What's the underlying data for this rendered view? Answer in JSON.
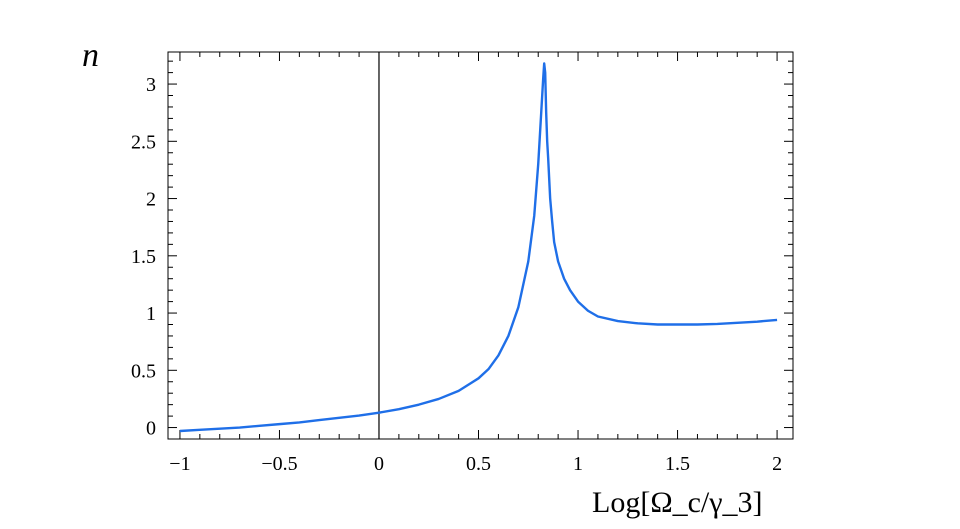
{
  "chart_data": {
    "type": "line",
    "title": "",
    "xlabel": "Log[Ω_c/γ_3]",
    "ylabel": "n",
    "xlim": [
      -1.06,
      2.08
    ],
    "ylim": [
      -0.1,
      3.28
    ],
    "x_ticks": [
      -1,
      -0.5,
      0,
      0.5,
      1,
      1.5,
      2
    ],
    "x_tick_labels": [
      "−1",
      "−0.5",
      "0",
      "0.5",
      "1",
      "1.5",
      "2"
    ],
    "y_ticks": [
      0,
      0.5,
      1,
      1.5,
      2,
      2.5,
      3
    ],
    "y_tick_labels": [
      "0",
      "0.5",
      "1",
      "1.5",
      "2",
      "2.5",
      "3"
    ],
    "grid": false,
    "vertical_reference_line_x": 0,
    "line_color": "#1f6fe8",
    "series": [
      {
        "x": [
          -1.0,
          -0.9,
          -0.8,
          -0.7,
          -0.6,
          -0.5,
          -0.4,
          -0.3,
          -0.2,
          -0.1,
          0.0,
          0.1,
          0.2,
          0.3,
          0.4,
          0.5,
          0.55,
          0.6,
          0.65,
          0.7,
          0.75,
          0.78,
          0.8,
          0.815,
          0.825,
          0.83,
          0.835,
          0.84,
          0.845,
          0.85,
          0.86,
          0.87,
          0.88,
          0.9,
          0.93,
          0.96,
          1.0,
          1.05,
          1.1,
          1.2,
          1.3,
          1.4,
          1.5,
          1.6,
          1.7,
          1.8,
          1.9,
          2.0
        ],
        "y": [
          -0.03,
          -0.02,
          -0.01,
          0.0,
          0.015,
          0.03,
          0.045,
          0.065,
          0.085,
          0.105,
          0.13,
          0.16,
          0.2,
          0.25,
          0.32,
          0.43,
          0.51,
          0.63,
          0.8,
          1.05,
          1.45,
          1.85,
          2.3,
          2.75,
          3.05,
          3.18,
          3.1,
          2.75,
          2.5,
          2.35,
          2.0,
          1.8,
          1.62,
          1.45,
          1.3,
          1.2,
          1.1,
          1.02,
          0.97,
          0.93,
          0.91,
          0.9,
          0.9,
          0.9,
          0.905,
          0.915,
          0.925,
          0.94
        ]
      }
    ]
  }
}
